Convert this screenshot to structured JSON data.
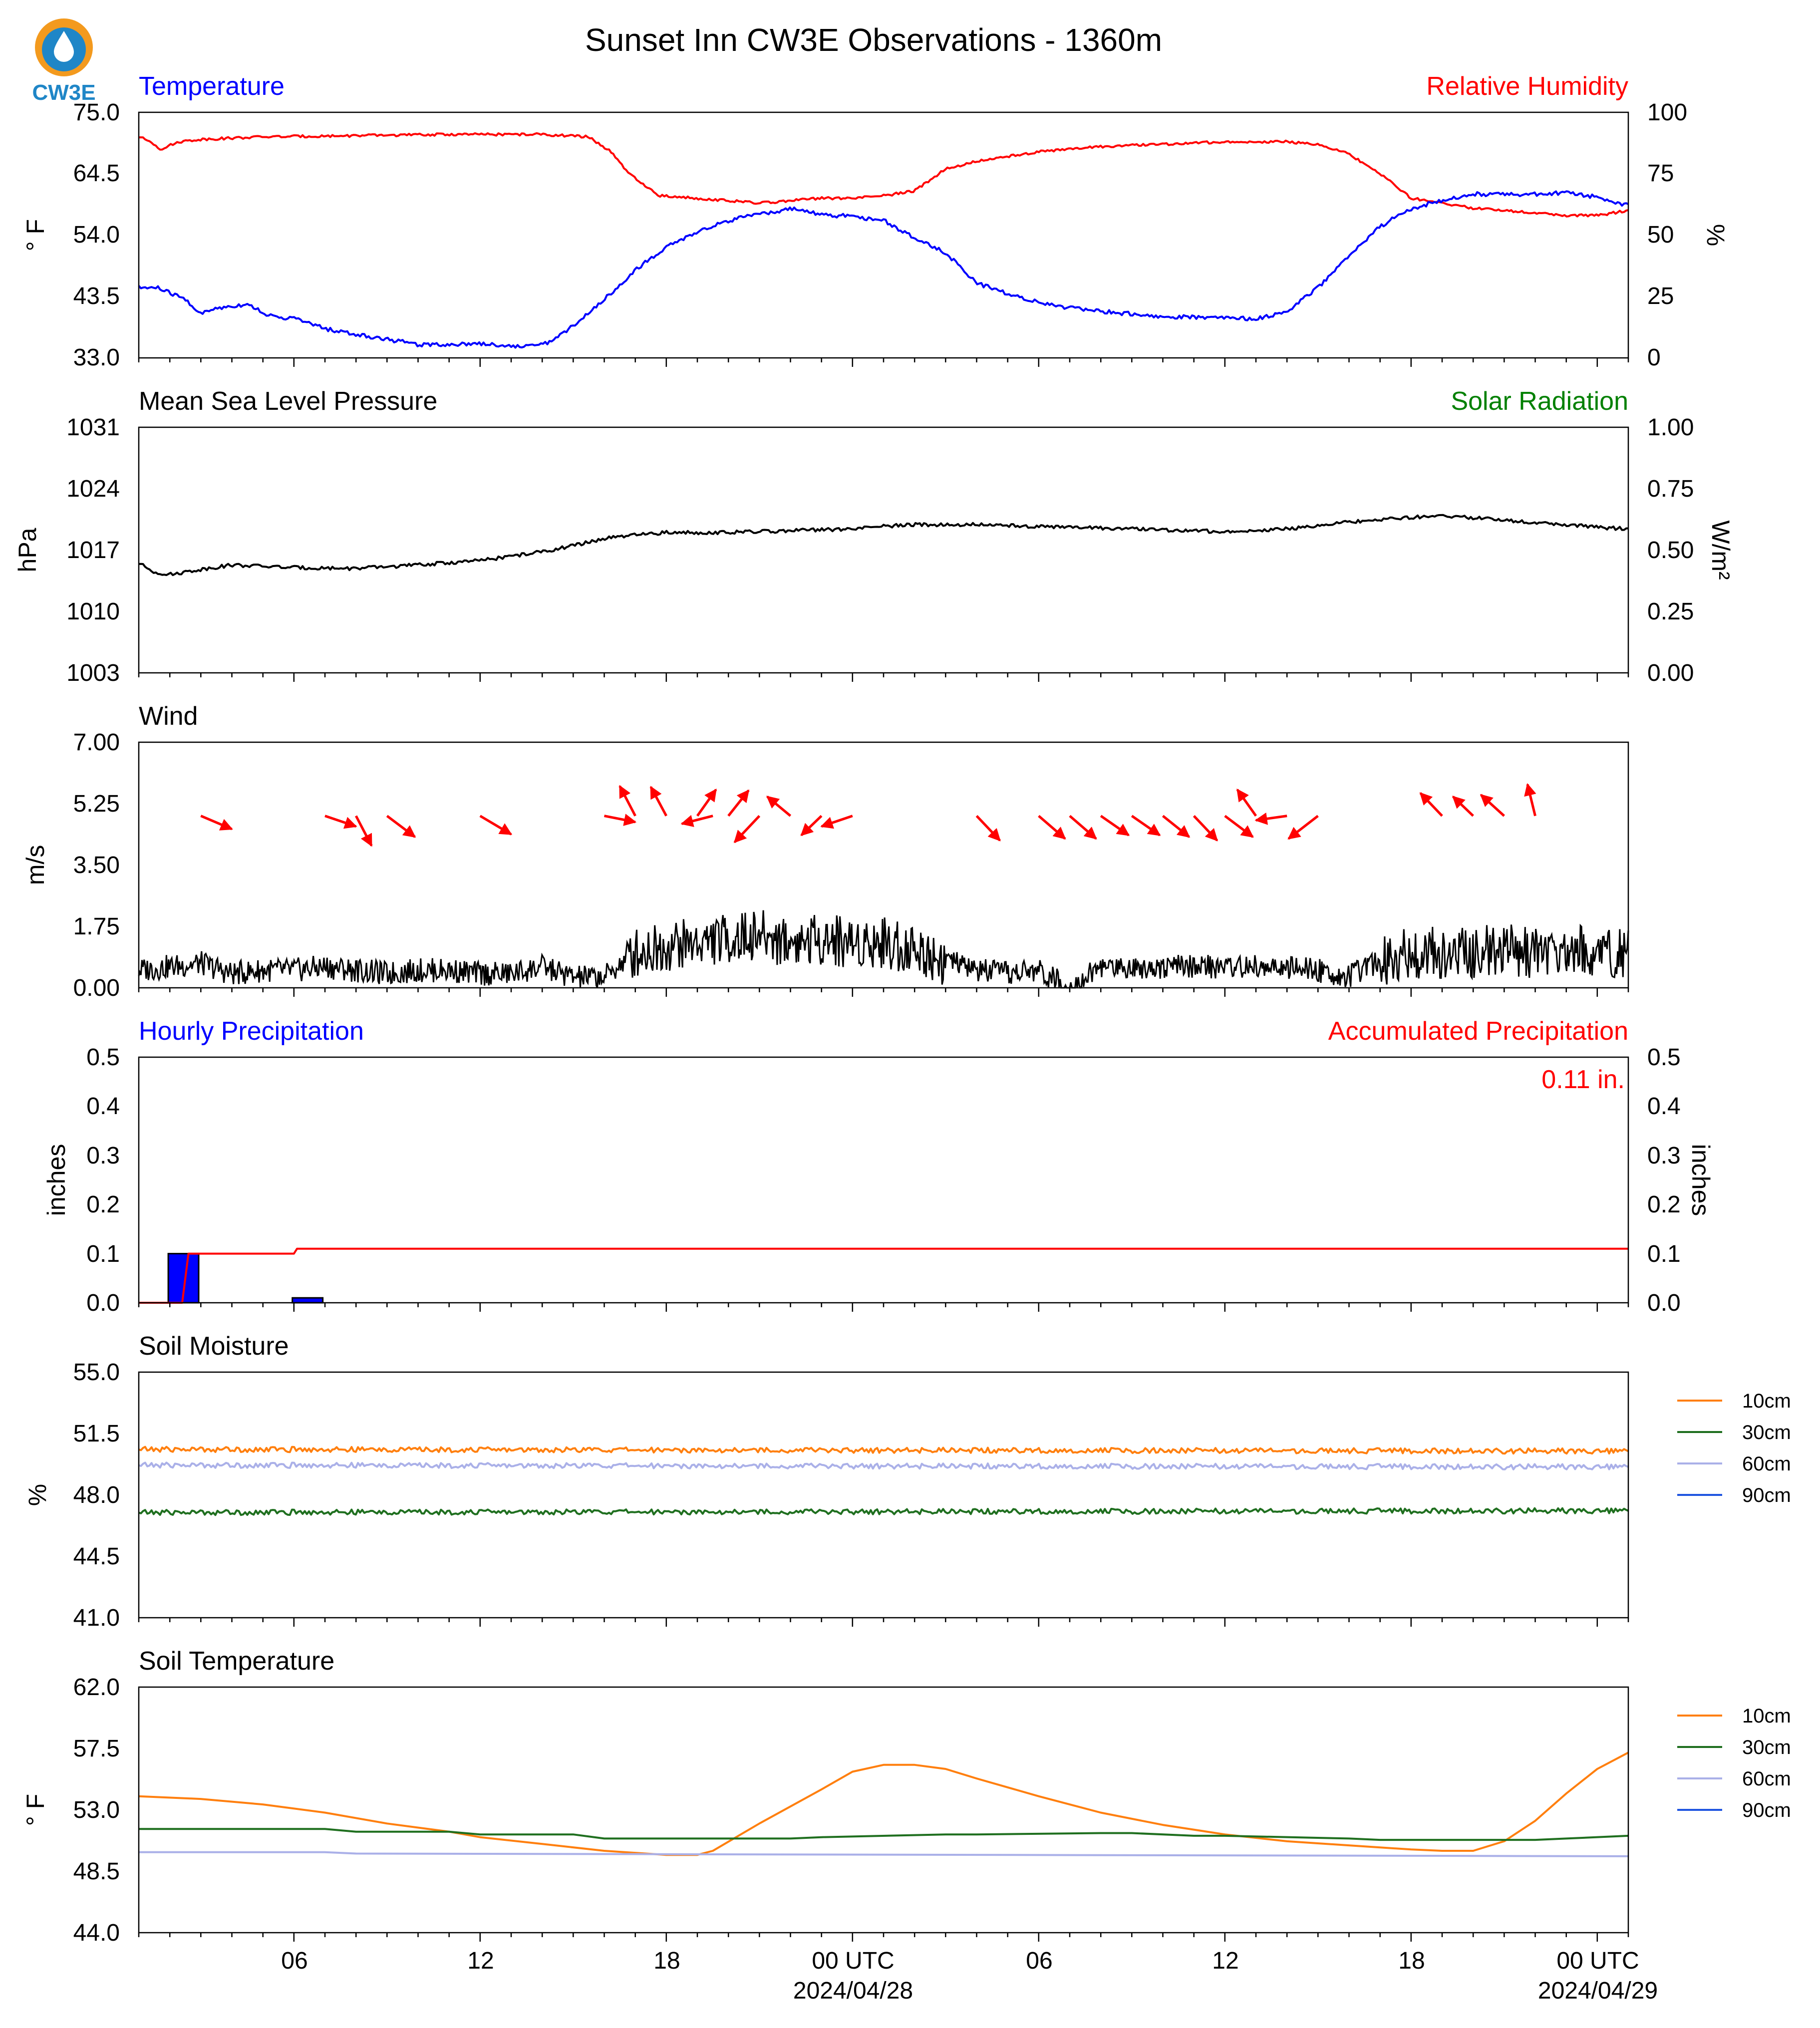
{
  "title": "Sunset Inn CW3E Observations - 1360m",
  "logo_text": "CW3E",
  "x_axis": {
    "tick_labels": [
      "06",
      "12",
      "18",
      "00 UTC",
      "06",
      "12",
      "18",
      "00 UTC"
    ],
    "tick_hours": [
      6,
      12,
      18,
      24,
      30,
      36,
      42,
      48
    ],
    "date_labels": [
      "2024/04/28",
      "2024/04/29"
    ],
    "date_hours": [
      24,
      48
    ],
    "range_hours": [
      1,
      49
    ]
  },
  "colors": {
    "temperature": "#0000ff",
    "humidity": "#ff0000",
    "pressure": "#000000",
    "solar": "#008000",
    "wind_arrow": "#ff0000",
    "wind_speed": "#000000",
    "hourly_precip": "#0000ff",
    "accum_precip": "#ff0000",
    "depth_10": "#ff7f0e",
    "depth_30": "#1f6f1f",
    "depth_60": "#aab0e8",
    "depth_90": "#1f55e0"
  },
  "panels": {
    "temp_rh": {
      "left_title": "Temperature",
      "right_title": "Relative Humidity",
      "left_unit": "° F",
      "right_unit": "%",
      "left_ticks": [
        "33.0",
        "43.5",
        "54.0",
        "64.5",
        "75.0"
      ],
      "right_ticks": [
        "0",
        "25",
        "50",
        "75",
        "100"
      ]
    },
    "pressure": {
      "left_title": "Mean Sea Level Pressure",
      "right_title": "Solar Radiation",
      "left_unit": "hPa",
      "right_unit": "W/m²",
      "left_ticks": [
        "1003",
        "1010",
        "1017",
        "1024",
        "1031"
      ],
      "right_ticks": [
        "0.00",
        "0.25",
        "0.50",
        "0.75",
        "1.00"
      ]
    },
    "wind": {
      "left_title": "Wind",
      "left_unit": "m/s",
      "left_ticks": [
        "0.00",
        "1.75",
        "3.50",
        "5.25",
        "7.00"
      ]
    },
    "precip": {
      "left_title": "Hourly Precipitation",
      "right_title": "Accumulated Precipitation",
      "left_unit": "inches",
      "right_unit": "inches",
      "total_label": "0.11 in.",
      "left_ticks": [
        "0.0",
        "0.1",
        "0.2",
        "0.3",
        "0.4",
        "0.5"
      ],
      "right_ticks": [
        "0.0",
        "0.1",
        "0.2",
        "0.3",
        "0.4",
        "0.5"
      ]
    },
    "soil_moisture": {
      "left_title": "Soil Moisture",
      "left_unit": "%",
      "left_ticks": [
        "41.0",
        "44.5",
        "48.0",
        "51.5",
        "55.0"
      ],
      "legend": [
        "10cm",
        "30cm",
        "60cm",
        "90cm"
      ]
    },
    "soil_temp": {
      "left_title": "Soil Temperature",
      "left_unit": "° F",
      "left_ticks": [
        "44.0",
        "48.5",
        "53.0",
        "57.5",
        "62.0"
      ],
      "legend": [
        "10cm",
        "30cm",
        "60cm",
        "90cm"
      ]
    }
  },
  "chart_data": [
    {
      "type": "line",
      "title": "Temperature",
      "ylabel": "° F",
      "ylim": [
        33.0,
        75.0
      ],
      "x_units": "hours from 2024-04-27 00 UTC",
      "series": [
        {
          "name": "Temperature",
          "x": [
            1,
            1.6,
            2.5,
            3,
            3.5,
            4.5,
            5.3,
            6,
            7,
            8,
            9,
            10,
            11,
            12,
            13,
            13.6,
            14.3,
            15,
            16,
            17,
            18,
            19,
            20,
            21,
            22,
            23,
            24,
            25,
            26,
            27,
            28,
            29,
            30,
            31,
            32,
            33,
            34,
            35,
            36,
            37,
            38,
            39,
            40,
            41,
            42,
            43,
            44,
            45,
            46,
            47,
            48,
            48.5,
            49
          ],
          "y": [
            45.0,
            45.0,
            43.0,
            40.5,
            41.5,
            42.2,
            40.0,
            39.8,
            38.0,
            37.0,
            36.2,
            35.3,
            35.3,
            35.5,
            35.0,
            35.0,
            35.8,
            38.5,
            43.0,
            48.0,
            52.0,
            54.5,
            56.5,
            57.5,
            58.5,
            57.5,
            57.2,
            56.5,
            53.5,
            51.0,
            45.8,
            44.0,
            42.5,
            41.5,
            41.0,
            40.5,
            40.0,
            40.0,
            40.0,
            39.6,
            41.0,
            45.0,
            50.5,
            55.5,
            58.5,
            60.0,
            61.0,
            61.0,
            61.0,
            61.2,
            60.5,
            59.5,
            59.3
          ]
        }
      ]
    },
    {
      "type": "line",
      "title": "Relative Humidity",
      "ylabel": "%",
      "ylim": [
        0,
        100
      ],
      "x_units": "hours from 2024-04-27 00 UTC",
      "series": [
        {
          "name": "Relative Humidity",
          "x": [
            1,
            1.4,
            1.7,
            2.3,
            3,
            5,
            8,
            11,
            14,
            15.5,
            16.2,
            16.8,
            17.3,
            17.8,
            19,
            20,
            21,
            22,
            23,
            24,
            25,
            26,
            27,
            28,
            30,
            32,
            34,
            36,
            38,
            39,
            40,
            41,
            42,
            44,
            46,
            47,
            48,
            49
          ],
          "y": [
            90,
            88,
            85,
            88,
            89,
            90,
            90.5,
            91,
            91,
            90,
            84,
            75,
            70,
            66,
            65,
            64,
            63,
            64,
            65,
            65,
            66,
            68,
            77,
            80,
            84,
            86,
            87,
            88,
            88,
            87,
            83,
            75,
            65,
            61,
            59,
            58,
            58,
            60
          ]
        }
      ]
    },
    {
      "type": "line",
      "title": "Mean Sea Level Pressure",
      "ylabel": "hPa",
      "ylim": [
        1003,
        1031
      ],
      "x_units": "hours from 2024-04-27 00 UTC",
      "series": [
        {
          "name": "Mean Sea Level Pressure",
          "x": [
            1,
            1.5,
            2,
            3,
            4,
            6,
            8,
            10,
            12,
            14,
            15,
            16,
            17,
            18,
            20,
            22,
            24,
            25,
            26,
            28,
            30,
            32,
            34,
            36,
            38,
            40,
            42,
            43,
            44,
            45,
            46,
            47,
            48,
            49
          ],
          "y": [
            1015.5,
            1014.5,
            1014.2,
            1014.8,
            1015.3,
            1015.0,
            1014.9,
            1015.3,
            1015.8,
            1016.8,
            1017.5,
            1018.3,
            1018.7,
            1019.0,
            1019.0,
            1019.2,
            1019.4,
            1019.7,
            1019.9,
            1019.9,
            1019.7,
            1019.5,
            1019.3,
            1019.1,
            1019.4,
            1020.2,
            1020.7,
            1020.9,
            1020.7,
            1020.4,
            1020.1,
            1019.9,
            1019.6,
            1019.4
          ]
        }
      ]
    },
    {
      "type": "line",
      "title": "Wind",
      "ylabel": "m/s",
      "ylim": [
        0,
        7.0
      ],
      "x_units": "hours from 2024-04-27 00 UTC",
      "series": [
        {
          "name": "Wind speed",
          "x": [
            1,
            2,
            3,
            4,
            5,
            6,
            7,
            8,
            9,
            10,
            11,
            12,
            13,
            14,
            15,
            16,
            17,
            18,
            19,
            20,
            21,
            22,
            23,
            24,
            25,
            26,
            27,
            28,
            29,
            30,
            31,
            32,
            33,
            34,
            35,
            36,
            37,
            38,
            39,
            40,
            41,
            42,
            43,
            44,
            45,
            46,
            47,
            48,
            49
          ],
          "y": [
            0.5,
            0.6,
            0.7,
            0.4,
            0.5,
            0.5,
            0.6,
            0.5,
            0.4,
            0.5,
            0.5,
            0.4,
            0.4,
            0.6,
            0.3,
            0.3,
            1.0,
            1.2,
            1.3,
            1.4,
            1.5,
            1.3,
            1.4,
            1.3,
            1.3,
            1.1,
            0.8,
            0.5,
            0.4,
            0.5,
            0.0,
            0.6,
            0.6,
            0.6,
            0.6,
            0.6,
            0.6,
            0.55,
            0.5,
            0.3,
            0.8,
            1.0,
            1.0,
            1.0,
            1.1,
            1.0,
            1.1,
            1.0,
            1.0
          ]
        },
        {
          "name": "Wind direction",
          "arrows": [
            {
              "x": 3.0,
              "y": 4.9,
              "dx": 2.0,
              "dy": -0.75
            },
            {
              "x": 7.0,
              "y": 4.9,
              "dx": 2.0,
              "dy": -0.6
            },
            {
              "x": 8.0,
              "y": 4.9,
              "dx": 1.0,
              "dy": -1.7
            },
            {
              "x": 9.0,
              "y": 4.9,
              "dx": 1.8,
              "dy": -1.2
            },
            {
              "x": 12.0,
              "y": 4.9,
              "dx": 2.0,
              "dy": -1.05
            },
            {
              "x": 16.0,
              "y": 4.9,
              "dx": 2.0,
              "dy": -0.35
            },
            {
              "x": 17.0,
              "y": 4.9,
              "dx": -1.0,
              "dy": 1.7
            },
            {
              "x": 18.0,
              "y": 4.9,
              "dx": -1.0,
              "dy": 1.65
            },
            {
              "x": 19.5,
              "y": 4.9,
              "dx": -2.0,
              "dy": -0.45
            },
            {
              "x": 19.0,
              "y": 4.9,
              "dx": 1.2,
              "dy": 1.5
            },
            {
              "x": 20.0,
              "y": 4.9,
              "dx": 1.3,
              "dy": 1.45
            },
            {
              "x": 21.0,
              "y": 4.9,
              "dx": -1.6,
              "dy": -1.5
            },
            {
              "x": 22.0,
              "y": 4.9,
              "dx": -1.5,
              "dy": 1.1
            },
            {
              "x": 23.0,
              "y": 4.9,
              "dx": -1.3,
              "dy": -1.1
            },
            {
              "x": 24.0,
              "y": 4.9,
              "dx": -2.0,
              "dy": -0.6
            },
            {
              "x": 28.0,
              "y": 4.9,
              "dx": 1.5,
              "dy": -1.4
            },
            {
              "x": 30.0,
              "y": 4.9,
              "dx": 1.7,
              "dy": -1.3
            },
            {
              "x": 31.0,
              "y": 4.9,
              "dx": 1.7,
              "dy": -1.3
            },
            {
              "x": 32.0,
              "y": 4.9,
              "dx": 1.8,
              "dy": -1.1
            },
            {
              "x": 33.0,
              "y": 4.9,
              "dx": 1.8,
              "dy": -1.1
            },
            {
              "x": 34.0,
              "y": 4.9,
              "dx": 1.7,
              "dy": -1.2
            },
            {
              "x": 35.0,
              "y": 4.9,
              "dx": 1.5,
              "dy": -1.4
            },
            {
              "x": 36.0,
              "y": 4.9,
              "dx": 1.8,
              "dy": -1.2
            },
            {
              "x": 37.0,
              "y": 4.9,
              "dx": -1.2,
              "dy": 1.5
            },
            {
              "x": 38.0,
              "y": 4.9,
              "dx": -2.0,
              "dy": -0.25
            },
            {
              "x": 39.0,
              "y": 4.9,
              "dx": -1.9,
              "dy": -1.3
            },
            {
              "x": 43.0,
              "y": 4.9,
              "dx": -1.4,
              "dy": 1.3
            },
            {
              "x": 44.0,
              "y": 4.9,
              "dx": -1.3,
              "dy": 1.1
            },
            {
              "x": 45.0,
              "y": 4.9,
              "dx": -1.5,
              "dy": 1.2
            },
            {
              "x": 46.0,
              "y": 4.9,
              "dx": -0.5,
              "dy": 1.8
            }
          ]
        }
      ]
    },
    {
      "type": "bar",
      "title": "Hourly Precipitation",
      "ylabel": "inches",
      "ylim": [
        0,
        0.5
      ],
      "x_units": "hours from 2024-04-27 00 UTC",
      "series": [
        {
          "name": "Hourly Precipitation",
          "x": [
            2,
            6
          ],
          "values": [
            0.1,
            0.01
          ]
        }
      ]
    },
    {
      "type": "line",
      "title": "Accumulated Precipitation",
      "ylabel": "inches",
      "ylim": [
        0,
        0.5
      ],
      "x_units": "hours from 2024-04-27 00 UTC",
      "series": [
        {
          "name": "Accumulated Precipitation",
          "x": [
            1,
            1.5,
            2.4,
            2.6,
            6.0,
            6.1,
            49
          ],
          "y": [
            0,
            0,
            0.0,
            0.1,
            0.1,
            0.11,
            0.11
          ]
        }
      ]
    },
    {
      "type": "line",
      "title": "Soil Moisture",
      "ylabel": "%",
      "ylim": [
        41.0,
        55.0
      ],
      "x_units": "hours from 2024-04-27 00 UTC",
      "series": [
        {
          "name": "10cm",
          "x": [
            1,
            49
          ],
          "y": [
            50.6,
            50.5
          ]
        },
        {
          "name": "30cm",
          "x": [
            1,
            49
          ],
          "y": [
            47.0,
            47.1
          ]
        },
        {
          "name": "60cm",
          "x": [
            1,
            49
          ],
          "y": [
            49.7,
            49.6
          ]
        },
        {
          "name": "90cm",
          "x": [],
          "y": []
        }
      ]
    },
    {
      "type": "line",
      "title": "Soil Temperature",
      "ylabel": "° F",
      "ylim": [
        44.0,
        62.0
      ],
      "x_units": "hours from 2024-04-27 00 UTC",
      "series": [
        {
          "name": "10cm",
          "x": [
            1,
            3,
            5,
            7,
            9,
            11,
            12,
            14,
            16,
            18,
            19,
            19.5,
            21,
            23,
            24,
            25,
            26,
            27,
            28,
            30,
            32,
            34,
            36,
            38,
            40,
            42,
            43,
            44,
            45,
            46,
            47,
            48,
            49
          ],
          "y": [
            54.0,
            53.8,
            53.4,
            52.8,
            52.0,
            51.4,
            51.0,
            50.5,
            50.0,
            49.7,
            49.7,
            50.0,
            52.0,
            54.5,
            55.8,
            56.3,
            56.3,
            56.0,
            55.3,
            54.0,
            52.8,
            51.9,
            51.2,
            50.7,
            50.4,
            50.1,
            50.0,
            50.0,
            50.7,
            52.2,
            54.2,
            56.0,
            57.2
          ]
        },
        {
          "name": "30cm",
          "x": [
            1,
            7,
            8,
            11,
            12,
            15,
            16,
            22,
            23,
            27,
            28,
            32,
            33,
            35,
            36,
            40,
            41,
            46,
            47,
            49
          ],
          "y": [
            51.6,
            51.6,
            51.4,
            51.4,
            51.2,
            51.2,
            50.9,
            50.9,
            51.0,
            51.2,
            51.2,
            51.3,
            51.3,
            51.1,
            51.1,
            50.9,
            50.8,
            50.8,
            50.9,
            51.1
          ]
        },
        {
          "name": "60cm",
          "x": [
            1,
            7,
            8,
            49
          ],
          "y": [
            49.9,
            49.9,
            49.8,
            49.6
          ]
        },
        {
          "name": "90cm",
          "x": [],
          "y": []
        }
      ]
    }
  ]
}
